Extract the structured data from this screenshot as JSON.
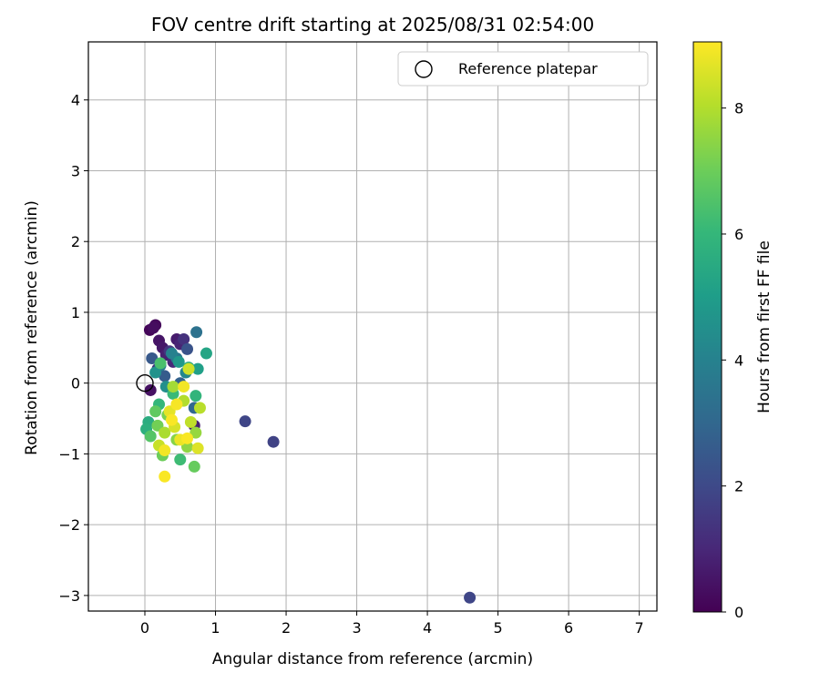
{
  "chart_data": {
    "type": "scatter",
    "title": "FOV centre drift starting at 2025/08/31 02:54:00",
    "xlabel": "Angular distance from reference (arcmin)",
    "ylabel": "Rotation from reference (arcmin)",
    "xlim": [
      -0.8,
      7.25
    ],
    "ylim": [
      -3.22,
      4.82
    ],
    "xticks": [
      0,
      1,
      2,
      3,
      4,
      5,
      6,
      7
    ],
    "yticks": [
      -3,
      -2,
      -1,
      0,
      1,
      2,
      3,
      4
    ],
    "grid": true,
    "legend": {
      "position": "top-right",
      "entries": [
        {
          "label": "Reference platepar",
          "marker": "open-circle"
        }
      ]
    },
    "reference_point": {
      "x": 0,
      "y": 0
    },
    "colorbar": {
      "label": "Hours from first FF file",
      "colormap": "viridis",
      "range": [
        0,
        9.05
      ],
      "ticks": [
        0,
        2,
        4,
        6,
        8
      ]
    },
    "colors": {
      "stops": [
        "#440154",
        "#482878",
        "#3e4a89",
        "#31688e",
        "#26828e",
        "#1f9e89",
        "#35b779",
        "#6ece58",
        "#b5de2b",
        "#fde725"
      ]
    },
    "series": [
      {
        "points": [
          {
            "x": 0.07,
            "y": 0.75,
            "c": 0.1
          },
          {
            "x": 0.15,
            "y": 0.82,
            "c": 0.2
          },
          {
            "x": 0.12,
            "y": 0.78,
            "c": 0.3
          },
          {
            "x": 0.2,
            "y": 0.6,
            "c": 0.5
          },
          {
            "x": 0.25,
            "y": 0.5,
            "c": 0.6
          },
          {
            "x": 0.45,
            "y": 0.62,
            "c": 0.7
          },
          {
            "x": 0.3,
            "y": 0.4,
            "c": 0.8
          },
          {
            "x": 0.5,
            "y": 0.55,
            "c": 0.9
          },
          {
            "x": 0.08,
            "y": -0.1,
            "c": 0.4
          },
          {
            "x": 0.7,
            "y": -0.6,
            "c": 0.8
          },
          {
            "x": 0.4,
            "y": 0.3,
            "c": 1.0
          },
          {
            "x": 0.18,
            "y": 0.2,
            "c": 1.1
          },
          {
            "x": 0.55,
            "y": 0.62,
            "c": 1.3
          },
          {
            "x": 0.35,
            "y": 0.45,
            "c": 1.4
          },
          {
            "x": 1.42,
            "y": -0.54,
            "c": 1.9
          },
          {
            "x": 1.82,
            "y": -0.83,
            "c": 1.8
          },
          {
            "x": 4.6,
            "y": -3.03,
            "c": 1.9
          },
          {
            "x": 0.6,
            "y": 0.48,
            "c": 2.3
          },
          {
            "x": 0.1,
            "y": 0.35,
            "c": 2.5
          },
          {
            "x": 0.28,
            "y": 0.1,
            "c": 2.6
          },
          {
            "x": 0.5,
            "y": 0.0,
            "c": 2.8
          },
          {
            "x": 0.7,
            "y": -0.35,
            "c": 3.0
          },
          {
            "x": 0.73,
            "y": 0.72,
            "c": 3.4
          },
          {
            "x": 0.45,
            "y": 0.35,
            "c": 3.6
          },
          {
            "x": 0.22,
            "y": 0.25,
            "c": 3.8
          },
          {
            "x": 0.38,
            "y": 0.42,
            "c": 4.0
          },
          {
            "x": 0.58,
            "y": 0.15,
            "c": 4.2
          },
          {
            "x": 0.3,
            "y": -0.05,
            "c": 4.5
          },
          {
            "x": 0.15,
            "y": 0.15,
            "c": 4.6
          },
          {
            "x": 0.48,
            "y": 0.3,
            "c": 4.8
          },
          {
            "x": 0.75,
            "y": 0.2,
            "c": 5.1
          },
          {
            "x": 0.87,
            "y": 0.42,
            "c": 5.3
          },
          {
            "x": 0.62,
            "y": 0.22,
            "c": 5.5
          },
          {
            "x": 0.05,
            "y": -0.55,
            "c": 5.6
          },
          {
            "x": 0.02,
            "y": -0.65,
            "c": 5.7
          },
          {
            "x": 0.72,
            "y": -0.18,
            "c": 5.9
          },
          {
            "x": 0.2,
            "y": -0.3,
            "c": 6.0
          },
          {
            "x": 0.4,
            "y": -0.15,
            "c": 6.1
          },
          {
            "x": 0.5,
            "y": -1.08,
            "c": 6.2
          },
          {
            "x": 0.22,
            "y": 0.28,
            "c": 6.4
          },
          {
            "x": 0.08,
            "y": -0.75,
            "c": 6.6
          },
          {
            "x": 0.15,
            "y": -0.4,
            "c": 6.8
          },
          {
            "x": 0.7,
            "y": -1.18,
            "c": 6.9
          },
          {
            "x": 0.25,
            "y": -1.02,
            "c": 7.0
          },
          {
            "x": 0.18,
            "y": -0.6,
            "c": 7.1
          },
          {
            "x": 0.32,
            "y": -0.45,
            "c": 7.2
          },
          {
            "x": 0.45,
            "y": -0.8,
            "c": 7.4
          },
          {
            "x": 0.6,
            "y": -0.9,
            "c": 7.5
          },
          {
            "x": 0.72,
            "y": -0.7,
            "c": 7.6
          },
          {
            "x": 0.4,
            "y": -0.05,
            "c": 7.8
          },
          {
            "x": 0.28,
            "y": -0.7,
            "c": 7.9
          },
          {
            "x": 0.55,
            "y": -0.25,
            "c": 8.0
          },
          {
            "x": 0.78,
            "y": -0.35,
            "c": 8.1
          },
          {
            "x": 0.65,
            "y": -0.55,
            "c": 8.2
          },
          {
            "x": 0.2,
            "y": -0.88,
            "c": 8.3
          },
          {
            "x": 0.62,
            "y": 0.2,
            "c": 8.4
          },
          {
            "x": 0.42,
            "y": -0.62,
            "c": 8.5
          },
          {
            "x": 0.75,
            "y": -0.92,
            "c": 8.6
          },
          {
            "x": 0.35,
            "y": -0.4,
            "c": 8.7
          },
          {
            "x": 0.5,
            "y": -0.8,
            "c": 8.8
          },
          {
            "x": 0.28,
            "y": -0.95,
            "c": 8.9
          },
          {
            "x": 0.55,
            "y": -0.05,
            "c": 8.9
          },
          {
            "x": 0.38,
            "y": -0.52,
            "c": 9.0
          },
          {
            "x": 0.28,
            "y": -1.32,
            "c": 9.0
          },
          {
            "x": 0.6,
            "y": -0.78,
            "c": 9.0
          },
          {
            "x": 0.45,
            "y": -0.3,
            "c": 8.95
          }
        ]
      }
    ]
  }
}
